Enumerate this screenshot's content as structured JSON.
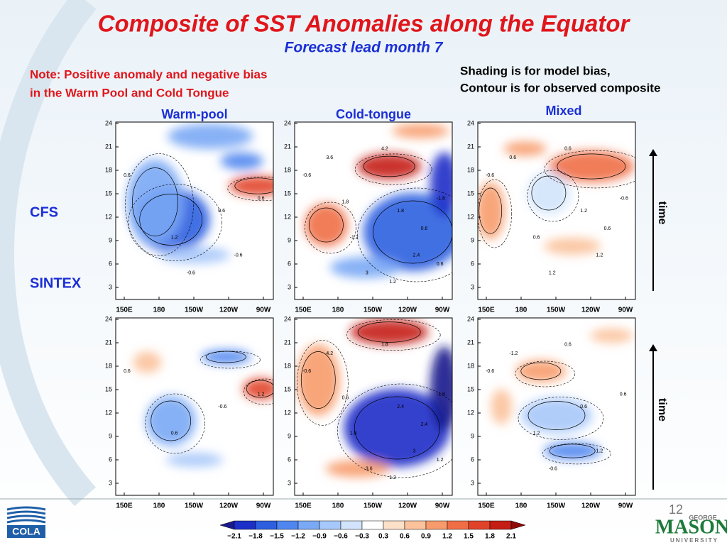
{
  "title": "Composite of SST Anomalies along the Equator",
  "subtitle": "Forecast lead month 7",
  "note": [
    "Note: Positive anomaly and negative bias",
    "in the Warm Pool and Cold Tongue"
  ],
  "legend_note": [
    "Shading is for model bias,",
    "Contour is for observed composite"
  ],
  "columns": [
    "Warm-pool",
    "Cold-tongue",
    "Mixed"
  ],
  "rows": [
    "CFS",
    "SINTEX"
  ],
  "yticks": [
    "24",
    "21",
    "18",
    "15",
    "12",
    "9",
    "6",
    "3"
  ],
  "xticks": [
    "150E",
    "180",
    "150W",
    "120W",
    "90W"
  ],
  "contour_labels": [
    [
      [
        "0.6",
        "0.6",
        "1.2",
        "0.6",
        "-0.6",
        "-0.6"
      ],
      [
        "-0.6",
        "-1.8",
        "-1.2",
        "1.8",
        "2.4",
        "3",
        "3.6",
        "4.2",
        "0.6",
        "1.8",
        "1.2",
        "0.6"
      ],
      [
        "-0.6",
        "-0.6",
        "0.6",
        "1.2",
        "1.2",
        "1.2",
        "0.6",
        "0.6",
        "0.6"
      ]
    ],
    [
      [
        "0.6",
        "1.2",
        "0.6",
        "-0.6"
      ],
      [
        "-0.6",
        "-1.8",
        "1.8",
        "2.4",
        "3",
        "3.6",
        "4.2",
        "1.8",
        "2.4",
        "0.6",
        "1.2",
        "1.2"
      ],
      [
        "-0.6",
        "0.6",
        "1.2",
        "0.6",
        "1.2",
        "-0.6",
        "-1.2",
        "0.6"
      ]
    ]
  ],
  "time_label": "time",
  "colorbar": {
    "labels": [
      "−2.1",
      "−1.8",
      "−1.5",
      "−1.2",
      "−0.9",
      "−0.6",
      "−0.3",
      "0.3",
      "0.6",
      "0.9",
      "1.2",
      "1.5",
      "1.8",
      "2.1"
    ],
    "colors": [
      "#1a1a8c",
      "#1c2fc8",
      "#2e5fe0",
      "#4f86ef",
      "#7aa9f5",
      "#a7c8fa",
      "#d2e4fc",
      "#ffffff",
      "#fde0c8",
      "#fbc29b",
      "#f79b6c",
      "#ef6e46",
      "#e1432a",
      "#c51d14",
      "#8f0a08"
    ]
  },
  "page_number": "12",
  "logo_left": "COLA",
  "logo_right": [
    "GEORGE",
    "MASON",
    "UNIVERSITY"
  ]
}
